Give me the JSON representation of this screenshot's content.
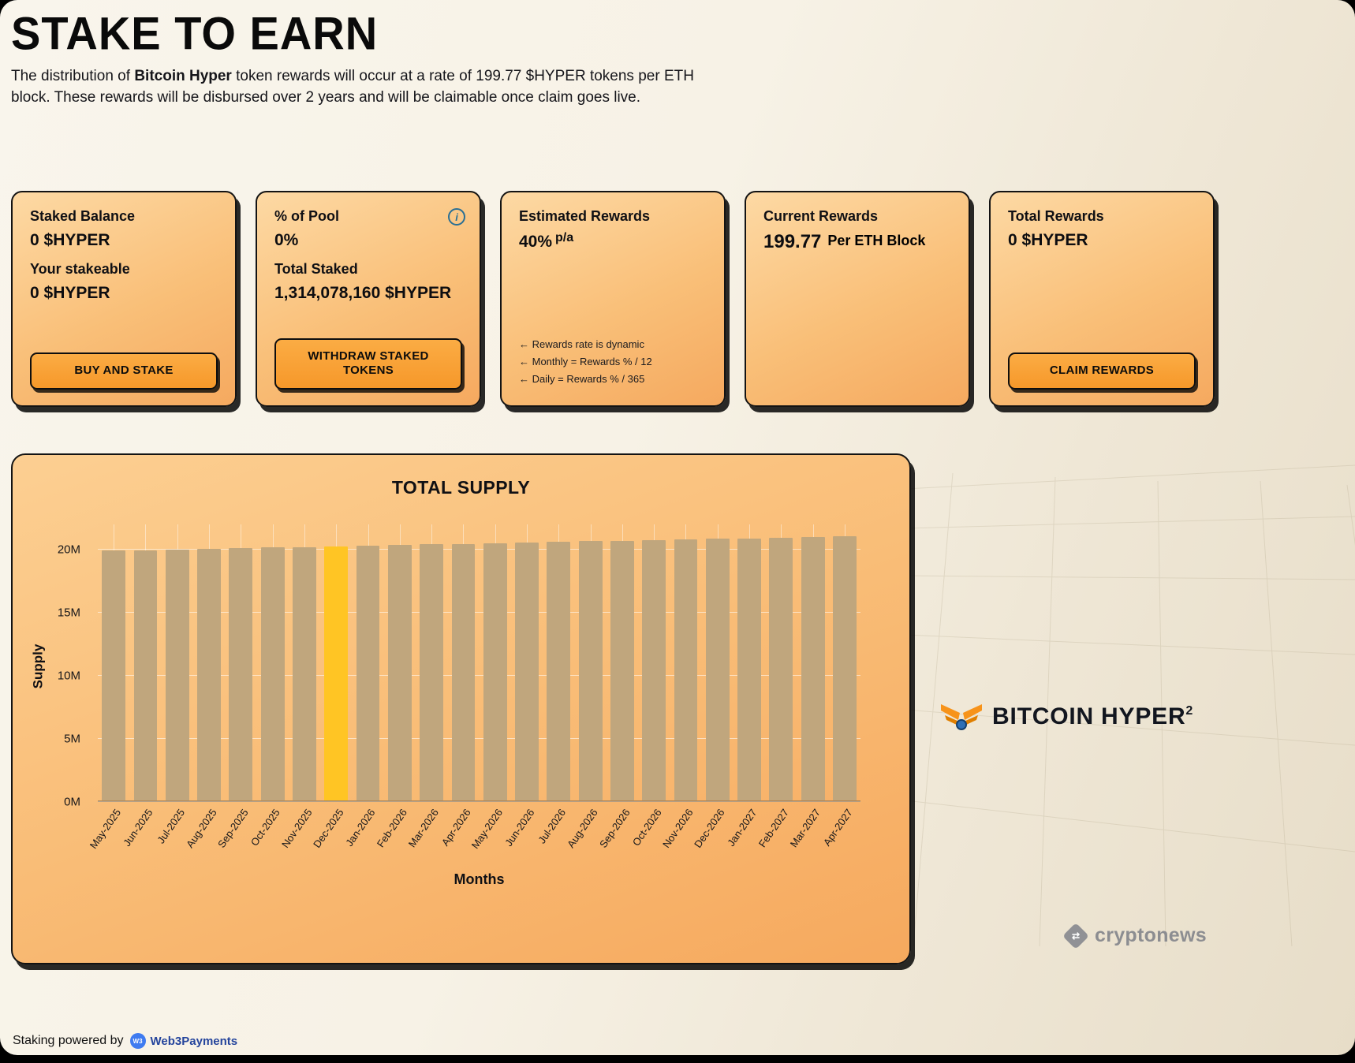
{
  "page": {
    "title": "STAKE TO EARN",
    "description_parts": {
      "p1": "The distribution of ",
      "p2": "Bitcoin Hyper",
      "p3": " token rewards will occur at a rate of 199.77 $HYPER tokens per ETH block. These rewards will be disbursed over 2 years and will be claimable once claim goes live."
    }
  },
  "cards": {
    "staked_balance": {
      "title": "Staked Balance",
      "value": "0 $HYPER",
      "stakeable_label": "Your stakeable",
      "stakeable_value": "0 $HYPER",
      "button": "BUY AND STAKE"
    },
    "pool": {
      "title": "% of Pool",
      "value": "0%",
      "total_staked_label": "Total Staked",
      "total_staked_value": "1,314,078,160 $HYPER",
      "button": "WITHDRAW STAKED TOKENS",
      "info_icon": "info-icon"
    },
    "estimated_rewards": {
      "title": "Estimated Rewards",
      "value": "40%",
      "suffix": "p/a",
      "notes": [
        "← Rewards rate is dynamic",
        "← Monthly = Rewards % / 12",
        "← Daily = Rewards % / 365"
      ]
    },
    "current_rewards": {
      "title": "Current Rewards",
      "value": "199.77",
      "suffix": "Per ETH Block"
    },
    "total_rewards": {
      "title": "Total Rewards",
      "value": "0 $HYPER",
      "button": "CLAIM REWARDS"
    }
  },
  "chart_data": {
    "type": "bar",
    "title": "TOTAL SUPPLY",
    "xlabel": "Months",
    "ylabel": "Supply",
    "categories": [
      "May-2025",
      "Jun-2025",
      "Jul-2025",
      "Aug-2025",
      "Sep-2025",
      "Oct-2025",
      "Nov-2025",
      "Dec-2025",
      "Jan-2026",
      "Feb-2026",
      "Mar-2026",
      "Apr-2026",
      "May-2026",
      "Jun-2026",
      "Jul-2026",
      "Aug-2026",
      "Sep-2026",
      "Oct-2026",
      "Nov-2026",
      "Dec-2026",
      "Jan-2027",
      "Feb-2027",
      "Mar-2027",
      "Apr-2027"
    ],
    "values_millions": [
      19.9,
      19.95,
      20.0,
      20.05,
      20.1,
      20.15,
      20.2,
      20.25,
      20.3,
      20.35,
      20.4,
      20.45,
      20.5,
      20.55,
      20.6,
      20.65,
      20.7,
      20.75,
      20.8,
      20.85,
      20.9,
      20.95,
      21.0,
      21.05
    ],
    "highlighted_category": "Dec-2025",
    "yticks": [
      "0M",
      "5M",
      "10M",
      "15M",
      "20M"
    ],
    "ytick_values": [
      0,
      5,
      10,
      15,
      20
    ],
    "ylim": [
      0,
      22
    ],
    "grid": true,
    "bar_color": "#c0a67d",
    "highlight_color": "#ffc524"
  },
  "branding": {
    "name": "BITCOIN HYPER",
    "sup": "2",
    "cryptonews": "cryptonews"
  },
  "footer": {
    "powered_by": "Staking powered by",
    "w3p_icon": "W3",
    "w3p_name": "Web3Payments"
  }
}
